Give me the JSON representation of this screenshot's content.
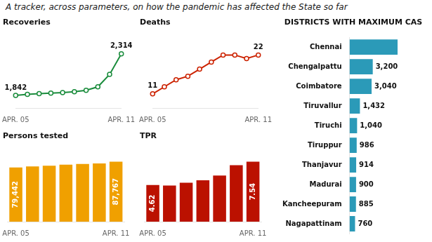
{
  "title": "A tracker, across parameters, on how the pandemic has affected the State so far",
  "chart_data": [
    {
      "type": "line",
      "title": "Recoveries",
      "categories": [
        "APR. 05",
        null,
        null,
        null,
        null,
        null,
        null,
        null,
        null,
        "APR. 11"
      ],
      "values": [
        1842,
        1855,
        1862,
        1868,
        1875,
        1885,
        1900,
        1940,
        2080,
        2314
      ],
      "value_labels": [
        "1,842",
        null,
        null,
        null,
        null,
        null,
        null,
        null,
        null,
        "2,314"
      ],
      "data_labels": true,
      "color": "#1a8c3c",
      "ylim": [
        1700,
        2500
      ],
      "grid": false,
      "tick_labels": "x"
    },
    {
      "type": "line",
      "title": "Deaths",
      "categories": [
        "APR. 05",
        null,
        null,
        null,
        null,
        null,
        null,
        null,
        null,
        "APR. 11"
      ],
      "values": [
        11,
        13,
        15,
        16,
        18,
        20,
        22,
        22,
        21,
        22
      ],
      "value_labels": [
        "11",
        null,
        null,
        null,
        null,
        null,
        null,
        null,
        null,
        "22"
      ],
      "data_labels": true,
      "color": "#cc2200",
      "ylim": [
        7,
        27
      ],
      "grid": false,
      "tick_labels": "x"
    },
    {
      "type": "bar",
      "title": "Persons tested",
      "categories": [
        "APR. 05",
        null,
        null,
        null,
        null,
        null,
        "APR. 11"
      ],
      "values": [
        79442,
        81000,
        82000,
        83500,
        84500,
        85200,
        87767
      ],
      "value_labels": [
        "79,442",
        null,
        null,
        null,
        null,
        null,
        "87,767"
      ],
      "data_labels": true,
      "color": "#f0a000",
      "ylim": [
        0,
        103565.06
      ],
      "grid": false,
      "tick_labels": "x"
    },
    {
      "type": "bar",
      "title": "TPR",
      "categories": [
        "APR. 05",
        null,
        null,
        null,
        null,
        null,
        "APR. 11"
      ],
      "values": [
        4.62,
        4.55,
        4.9,
        5.2,
        5.8,
        7.1,
        7.54
      ],
      "value_labels": [
        "4.62",
        null,
        null,
        null,
        null,
        null,
        "7.54"
      ],
      "data_labels": true,
      "color": "#bb1100",
      "ylim": [
        0,
        8.8972
      ],
      "grid": false,
      "tick_labels": "x"
    },
    {
      "type": "bar",
      "orientation": "horizontal",
      "title": "DISTRICTS WITH MAXIMUM CAS",
      "categories": [
        "Chennai",
        "Chengalpattu",
        "Coimbatore",
        "Tiruvallur",
        "Tiruchi",
        "Tiruppur",
        "Thanjavur",
        "Madurai",
        "Kancheepuram",
        "Nagapattinam"
      ],
      "values": [
        6618,
        3200,
        3040,
        1432,
        1040,
        986,
        914,
        900,
        885,
        760
      ],
      "value_labels": [
        null,
        "3,200",
        "3,040",
        "1,432",
        "1,040",
        "986",
        "914",
        "900",
        "885",
        "760"
      ],
      "data_labels": true,
      "color": "#2b9ab8",
      "xlim": [
        0,
        10588.8
      ],
      "grid": false,
      "tick_labels": "y"
    }
  ]
}
